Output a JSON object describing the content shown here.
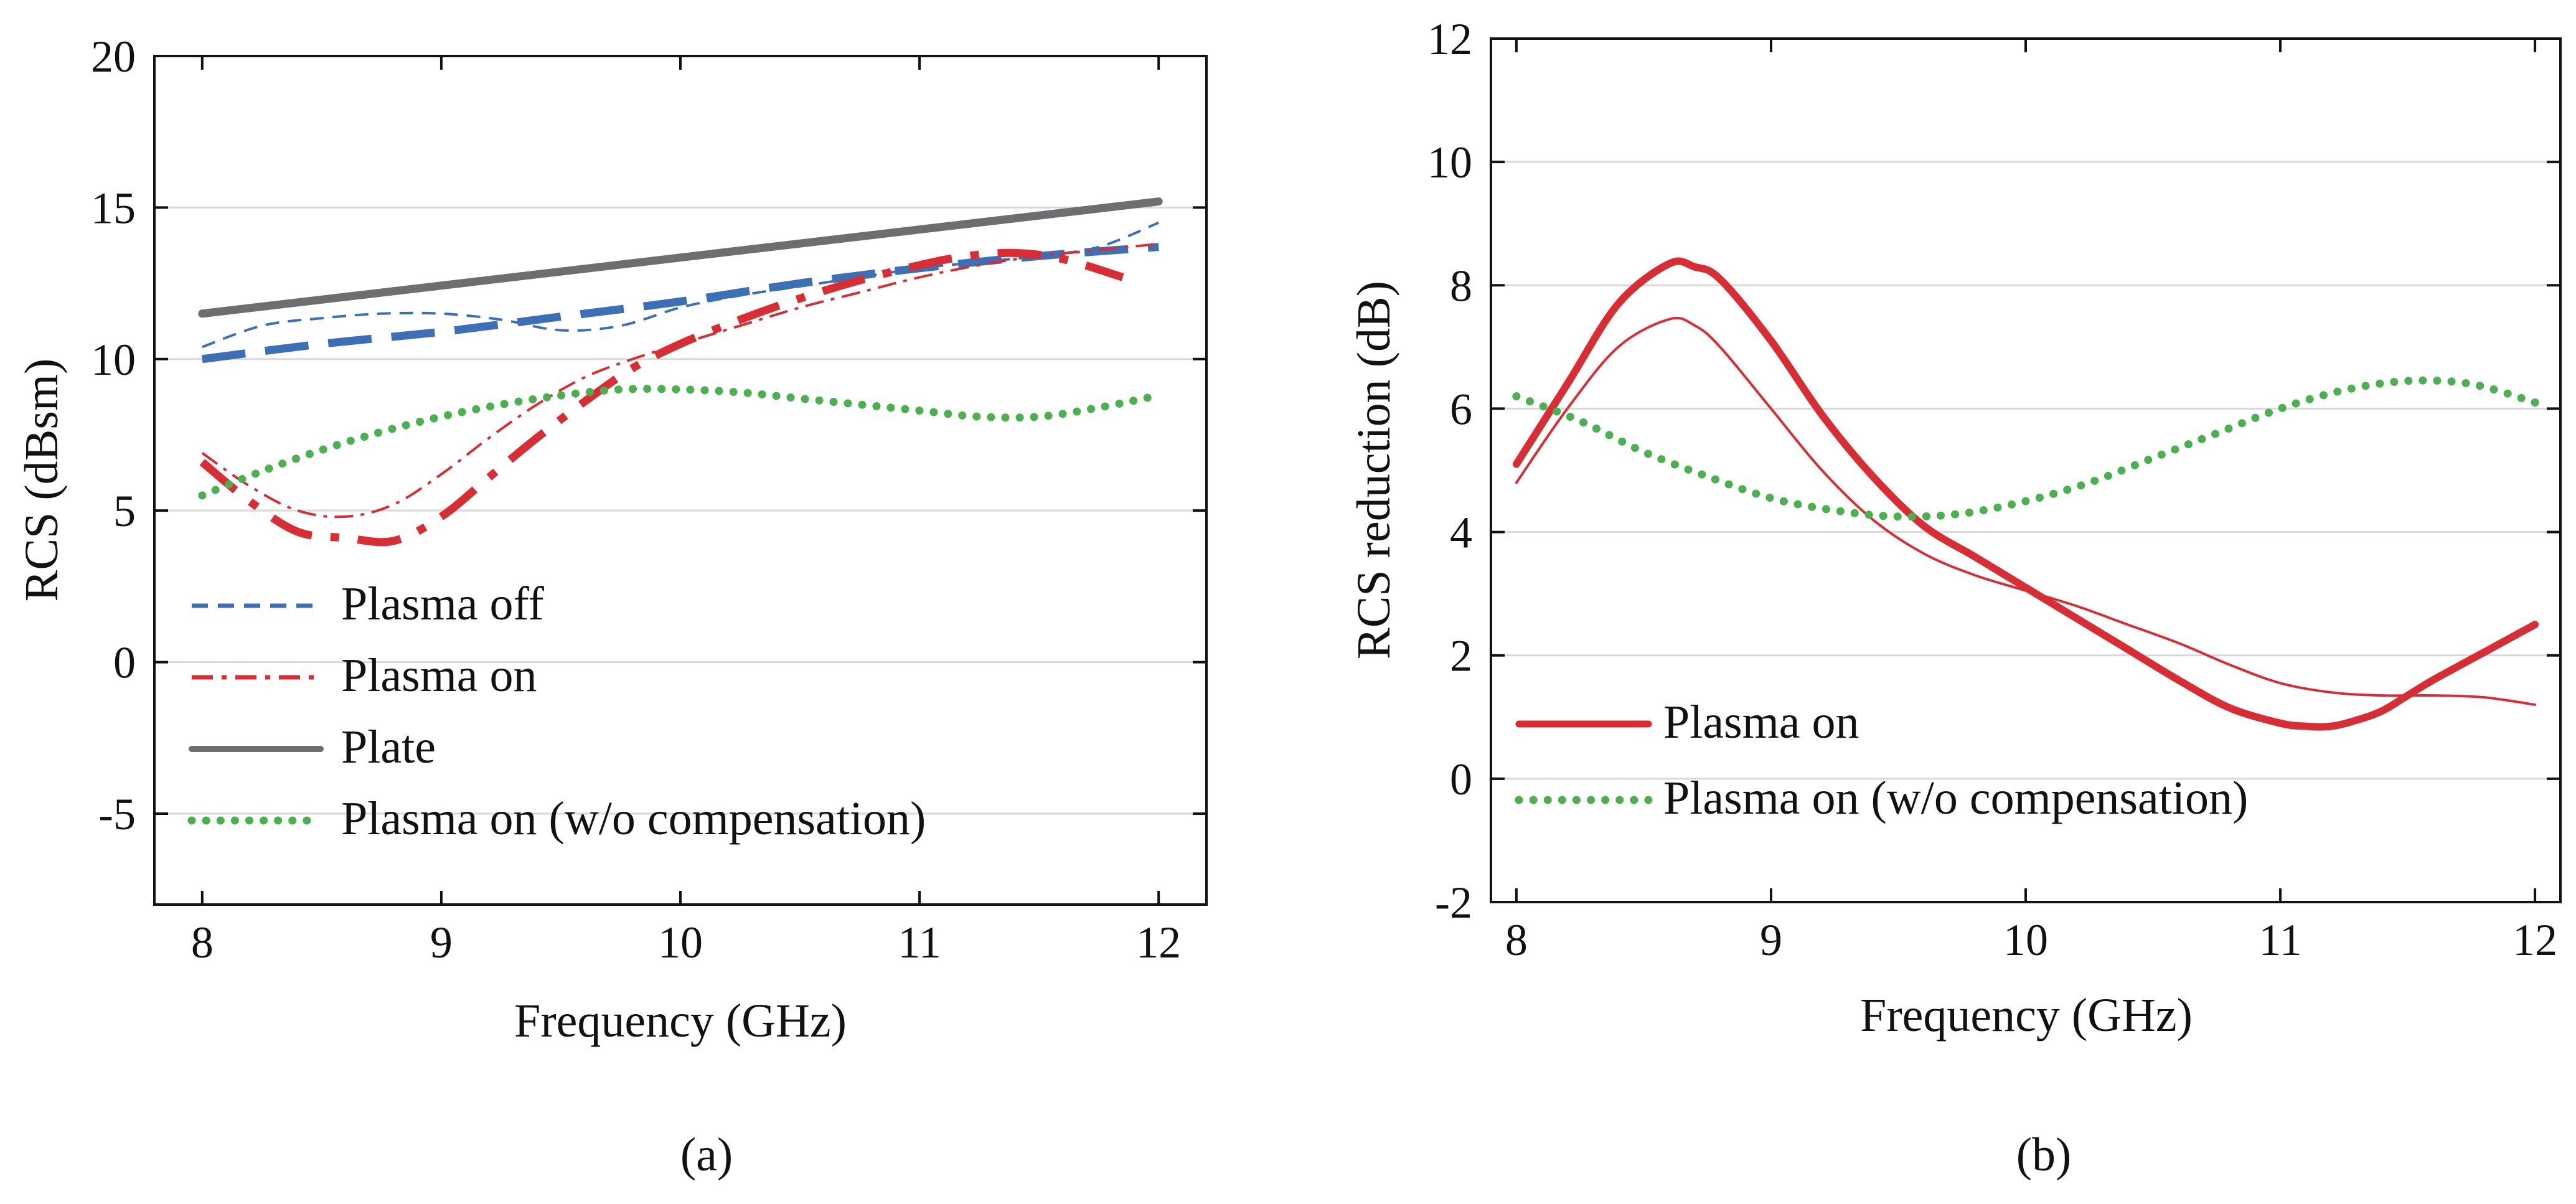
{
  "chart_data": [
    {
      "type": "line",
      "panel_label": "(a)",
      "xlabel": "Frequency (GHz)",
      "ylabel": "RCS (dBsm)",
      "xlim": [
        7.8,
        12.2
      ],
      "ylim": [
        -8,
        20
      ],
      "xticks": [
        "8",
        "9",
        "10",
        "11",
        "12"
      ],
      "yticks": [
        "-5",
        "0",
        "5",
        "10",
        "15",
        "20"
      ],
      "legend_position": "lower-left",
      "series": [
        {
          "name": "Plasma off",
          "style": "thin-dashed",
          "color": "#3c6fb6",
          "in_legend": true,
          "x": [
            8,
            8.25,
            8.5,
            8.75,
            9,
            9.25,
            9.5,
            9.75,
            10,
            10.25,
            10.5,
            10.75,
            11,
            11.25,
            11.5,
            11.75,
            12
          ],
          "y": [
            10.4,
            11.1,
            11.35,
            11.5,
            11.5,
            11.3,
            10.95,
            11.1,
            11.7,
            12.1,
            12.4,
            12.7,
            13.0,
            13.2,
            13.4,
            13.7,
            14.5
          ]
        },
        {
          "name": "Plasma off (thick)",
          "style": "thick-dashed",
          "color": "#3c6fb6",
          "in_legend": false,
          "x": [
            8,
            8.5,
            9,
            9.5,
            10,
            10.5,
            11,
            11.5,
            12
          ],
          "y": [
            10.0,
            10.5,
            10.9,
            11.4,
            11.9,
            12.5,
            13.0,
            13.4,
            13.7
          ]
        },
        {
          "name": "Plasma on",
          "style": "thin-dashdot",
          "color": "#d72e35",
          "in_legend": true,
          "x": [
            8,
            8.2,
            8.4,
            8.6,
            8.8,
            9,
            9.2,
            9.4,
            9.6,
            9.8,
            10,
            10.25,
            10.5,
            10.75,
            11,
            11.25,
            11.5,
            11.75,
            12
          ],
          "y": [
            6.9,
            5.8,
            5.0,
            4.8,
            5.2,
            6.2,
            7.4,
            8.5,
            9.4,
            10.0,
            10.5,
            11.1,
            11.7,
            12.2,
            12.7,
            13.1,
            13.4,
            13.6,
            13.8
          ]
        },
        {
          "name": "Plasma on (thick)",
          "style": "thick-dashdot",
          "color": "#d72e35",
          "in_legend": false,
          "x": [
            8,
            8.2,
            8.4,
            8.6,
            8.8,
            9,
            9.2,
            9.4,
            9.6,
            9.8,
            10,
            10.25,
            10.5,
            10.75,
            11,
            11.2,
            11.4,
            11.6,
            11.85
          ],
          "y": [
            6.6,
            5.3,
            4.3,
            4.1,
            4.0,
            4.8,
            6.1,
            7.4,
            8.6,
            9.7,
            10.5,
            11.3,
            12.0,
            12.6,
            13.1,
            13.4,
            13.5,
            13.3,
            12.7
          ]
        },
        {
          "name": "Plate",
          "style": "solid",
          "color": "#6d6e71",
          "in_legend": true,
          "x": [
            8,
            12
          ],
          "y": [
            11.5,
            15.2
          ]
        },
        {
          "name": "Plasma on (w/o compensation)",
          "style": "dotted",
          "color": "#4caf50",
          "in_legend": true,
          "x": [
            8,
            8.25,
            8.5,
            8.75,
            9,
            9.25,
            9.5,
            9.75,
            10,
            10.25,
            10.5,
            10.75,
            11,
            11.25,
            11.5,
            11.75,
            12
          ],
          "y": [
            5.5,
            6.3,
            7.0,
            7.6,
            8.1,
            8.5,
            8.8,
            9.0,
            9.0,
            8.9,
            8.7,
            8.5,
            8.3,
            8.1,
            8.1,
            8.4,
            8.8
          ]
        }
      ]
    },
    {
      "type": "line",
      "panel_label": "(b)",
      "xlabel": "Frequency (GHz)",
      "ylabel": "RCS reduction (dB)",
      "xlim": [
        7.9,
        12.1
      ],
      "ylim": [
        -2,
        12
      ],
      "xticks": [
        "8",
        "9",
        "10",
        "11",
        "12"
      ],
      "yticks": [
        "-2",
        "0",
        "2",
        "4",
        "6",
        "8",
        "10",
        "12"
      ],
      "legend_position": "lower-left",
      "series": [
        {
          "name": "Plasma on",
          "style": "thick-solid",
          "color": "#d72e35",
          "in_legend": true,
          "x": [
            8,
            8.2,
            8.4,
            8.6,
            8.7,
            8.8,
            9,
            9.2,
            9.4,
            9.6,
            9.8,
            10,
            10.2,
            10.4,
            10.6,
            10.8,
            11,
            11.1,
            11.2,
            11.3,
            11.4,
            11.5,
            11.6,
            11.8,
            12
          ],
          "y": [
            5.1,
            6.4,
            7.7,
            8.35,
            8.3,
            8.1,
            7.1,
            5.9,
            4.9,
            4.1,
            3.6,
            3.1,
            2.6,
            2.1,
            1.6,
            1.15,
            0.9,
            0.85,
            0.85,
            0.95,
            1.1,
            1.35,
            1.6,
            2.05,
            2.5
          ]
        },
        {
          "name": "Plasma on (thin)",
          "style": "thin-solid",
          "color": "#d72e35",
          "in_legend": false,
          "x": [
            8,
            8.2,
            8.4,
            8.6,
            8.7,
            8.8,
            9,
            9.2,
            9.4,
            9.6,
            9.8,
            10,
            10.2,
            10.4,
            10.6,
            10.8,
            11,
            11.2,
            11.4,
            11.6,
            11.8,
            12
          ],
          "y": [
            4.8,
            6.0,
            7.0,
            7.45,
            7.35,
            7.0,
            6.0,
            5.0,
            4.2,
            3.65,
            3.3,
            3.05,
            2.8,
            2.5,
            2.2,
            1.85,
            1.55,
            1.4,
            1.35,
            1.35,
            1.32,
            1.2
          ]
        },
        {
          "name": "Plasma on (w/o compensation)",
          "style": "dotted",
          "color": "#4caf50",
          "in_legend": true,
          "x": [
            8,
            8.25,
            8.5,
            8.75,
            9,
            9.25,
            9.5,
            9.75,
            10,
            10.25,
            10.5,
            10.75,
            11,
            11.25,
            11.5,
            11.75,
            12
          ],
          "y": [
            6.2,
            5.8,
            5.3,
            4.9,
            4.55,
            4.35,
            4.25,
            4.3,
            4.5,
            4.8,
            5.2,
            5.6,
            6.0,
            6.3,
            6.45,
            6.4,
            6.1
          ]
        }
      ]
    }
  ]
}
